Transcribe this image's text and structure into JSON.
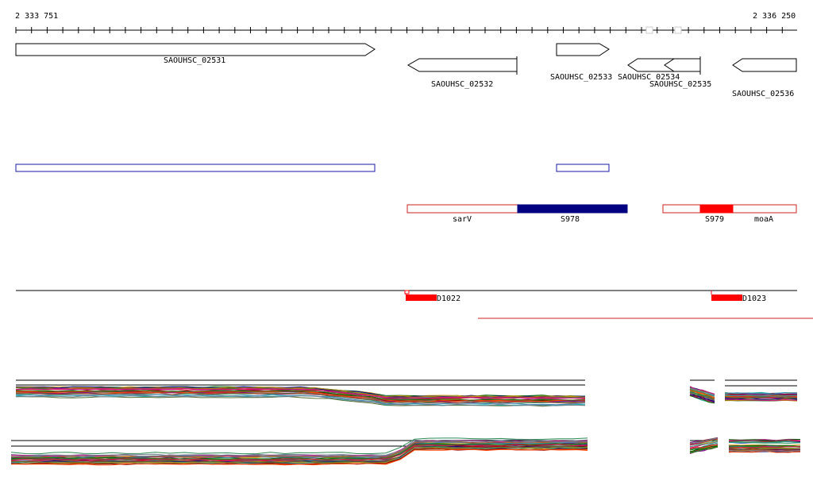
{
  "coordinates": {
    "start": "2 333 751",
    "end": "2 336 250"
  },
  "genes": [
    {
      "id": "SAOUHSC_02531",
      "label": "SAOUHSC_02531",
      "strand": "+"
    },
    {
      "id": "SAOUHSC_02532",
      "label": "SAOUHSC_02532",
      "strand": "-"
    },
    {
      "id": "SAOUHSC_02533",
      "label": "SAOUHSC_02533",
      "strand": "+"
    },
    {
      "id": "SAOUHSC_02534",
      "label": "SAOUHSC_02534",
      "strand": "-"
    },
    {
      "id": "SAOUHSC_02535",
      "label": "SAOUHSC_02535",
      "strand": "-"
    },
    {
      "id": "SAOUHSC_02536",
      "label": "SAOUHSC_02536",
      "strand": "-"
    }
  ],
  "annotations": [
    {
      "label": "sarV",
      "style": "outline"
    },
    {
      "label": "S978",
      "style": "filled-blue"
    },
    {
      "label": "S979",
      "style": "filled-red"
    },
    {
      "label": "moaA",
      "style": "outline"
    }
  ],
  "features": [
    {
      "label": "D1022"
    },
    {
      "label": "D1023"
    }
  ],
  "colors": {
    "gene_outline": "#000000",
    "transcript": "#1a1aa6",
    "annotation_outline": "#cc2222",
    "annotation_blue": "#000080",
    "annotation_red": "#ff0000",
    "feature": "#ff0000"
  }
}
